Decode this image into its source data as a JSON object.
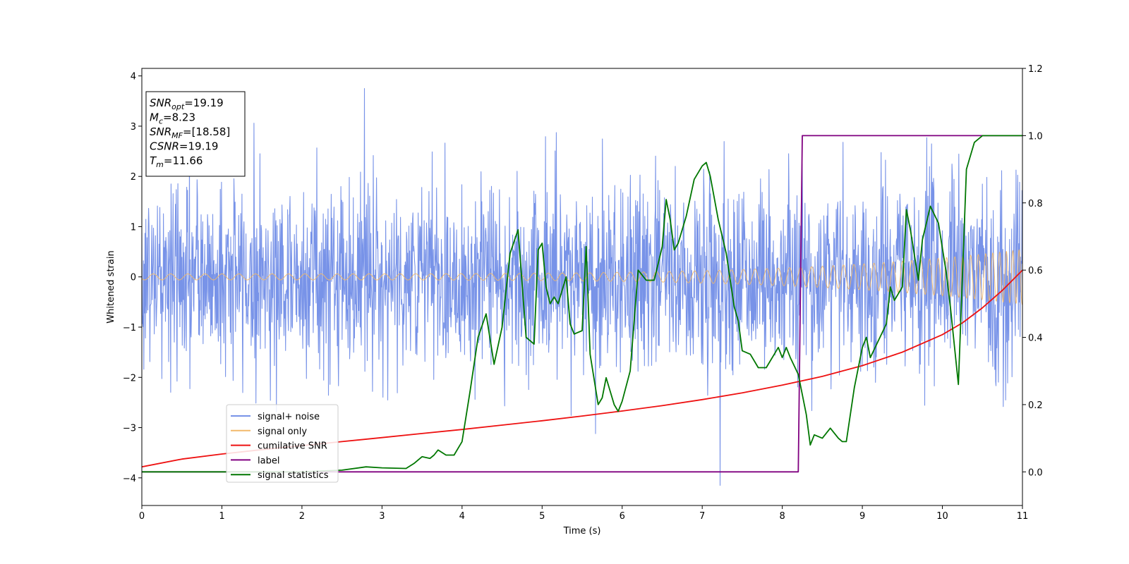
{
  "chart_data": {
    "type": "line",
    "xlabel": "Time (s)",
    "ylabel": "Whitened strain",
    "xlim": [
      0,
      11
    ],
    "ylim": [
      -4.55,
      4.15
    ],
    "y2lim": [
      -0.1,
      1.2
    ],
    "x_ticks": [
      0,
      1,
      2,
      3,
      4,
      5,
      6,
      7,
      8,
      9,
      10,
      11
    ],
    "y_ticks": [
      -4,
      -3,
      -2,
      -1,
      0,
      1,
      2,
      3,
      4
    ],
    "y2_ticks": [
      "0.0",
      "0.2",
      "0.4",
      "0.6",
      "0.8",
      "1.0",
      "1.2"
    ],
    "legend_position": "lower-left",
    "grid": false,
    "info_box": {
      "lines": [
        {
          "base": "SNR",
          "sub": "opt",
          "rest": "=19.19"
        },
        {
          "base": "M",
          "sub": "c",
          "rest": "=8.23"
        },
        {
          "base": "SNR",
          "sub": "MF",
          "rest": "=[18.58]"
        },
        {
          "base": "CSNR",
          "sub": "",
          "rest": "=19.19"
        },
        {
          "base": "T",
          "sub": "m",
          "rest": "=11.66"
        }
      ]
    },
    "series": [
      {
        "name": "signal+ noise",
        "color": "#7893e8",
        "axis": "left",
        "kind": "noise",
        "sigma": 1.0,
        "samples": 2200,
        "peak_max": 3.75,
        "peak_min": -4.15
      },
      {
        "name": "signal only",
        "color": "#f2b96a",
        "axis": "left",
        "kind": "chirp",
        "envelope_start": 0.06,
        "envelope_end": 0.55,
        "merger_time": 11.66
      },
      {
        "name": "cumilative SNR",
        "color": "#ee1111",
        "axis": "right",
        "x": [
          0,
          0.5,
          1,
          1.5,
          2,
          2.5,
          3,
          3.5,
          4,
          4.5,
          5,
          5.5,
          6,
          6.5,
          7,
          7.5,
          8,
          8.5,
          9,
          9.5,
          10,
          10.25,
          10.5,
          10.75,
          11
        ],
        "y": [
          0.015,
          0.038,
          0.053,
          0.066,
          0.078,
          0.09,
          0.102,
          0.114,
          0.126,
          0.139,
          0.152,
          0.166,
          0.181,
          0.197,
          0.215,
          0.235,
          0.258,
          0.284,
          0.316,
          0.356,
          0.408,
          0.443,
          0.488,
          0.54,
          0.6
        ]
      },
      {
        "name": "label",
        "color": "#800080",
        "axis": "right",
        "x": [
          0,
          8.2,
          8.25,
          11
        ],
        "y": [
          0,
          0,
          1,
          1
        ]
      },
      {
        "name": "signal statistics",
        "color": "#007700",
        "axis": "right",
        "x": [
          0,
          0.5,
          1,
          1.5,
          2,
          2.5,
          2.8,
          3,
          3.3,
          3.4,
          3.5,
          3.6,
          3.65,
          3.7,
          3.8,
          3.9,
          4.0,
          4.1,
          4.2,
          4.3,
          4.4,
          4.5,
          4.6,
          4.7,
          4.8,
          4.85,
          4.9,
          4.95,
          5.0,
          5.05,
          5.1,
          5.15,
          5.2,
          5.3,
          5.35,
          5.4,
          5.5,
          5.55,
          5.6,
          5.7,
          5.75,
          5.8,
          5.9,
          5.95,
          6.0,
          6.1,
          6.2,
          6.3,
          6.4,
          6.5,
          6.55,
          6.6,
          6.65,
          6.7,
          6.8,
          6.9,
          7.0,
          7.05,
          7.1,
          7.2,
          7.3,
          7.4,
          7.45,
          7.5,
          7.6,
          7.7,
          7.8,
          7.9,
          7.95,
          8.0,
          8.05,
          8.1,
          8.2,
          8.3,
          8.35,
          8.4,
          8.5,
          8.6,
          8.7,
          8.75,
          8.8,
          8.9,
          9.0,
          9.05,
          9.1,
          9.2,
          9.3,
          9.35,
          9.4,
          9.5,
          9.55,
          9.6,
          9.7,
          9.75,
          9.85,
          9.95,
          10.05,
          10.1,
          10.2,
          10.3,
          10.4,
          10.5,
          10.6,
          10.7,
          10.8,
          10.9,
          11.0
        ],
        "y": [
          0,
          0,
          0,
          0,
          0,
          0.005,
          0.015,
          0.012,
          0.01,
          0.025,
          0.045,
          0.04,
          0.05,
          0.065,
          0.05,
          0.05,
          0.09,
          0.24,
          0.4,
          0.47,
          0.32,
          0.43,
          0.65,
          0.72,
          0.4,
          0.39,
          0.38,
          0.66,
          0.68,
          0.55,
          0.5,
          0.52,
          0.5,
          0.58,
          0.44,
          0.41,
          0.42,
          0.67,
          0.35,
          0.2,
          0.22,
          0.28,
          0.2,
          0.18,
          0.21,
          0.3,
          0.6,
          0.57,
          0.57,
          0.67,
          0.81,
          0.75,
          0.66,
          0.68,
          0.76,
          0.87,
          0.91,
          0.92,
          0.88,
          0.75,
          0.65,
          0.49,
          0.45,
          0.36,
          0.35,
          0.31,
          0.31,
          0.35,
          0.37,
          0.34,
          0.37,
          0.34,
          0.29,
          0.17,
          0.08,
          0.11,
          0.1,
          0.13,
          0.1,
          0.09,
          0.09,
          0.25,
          0.37,
          0.4,
          0.34,
          0.39,
          0.44,
          0.55,
          0.51,
          0.55,
          0.78,
          0.72,
          0.57,
          0.69,
          0.79,
          0.74,
          0.59,
          0.49,
          0.26,
          0.9,
          0.98,
          1.0,
          1.0,
          1.0,
          1.0,
          1.0,
          1.0
        ]
      }
    ]
  }
}
